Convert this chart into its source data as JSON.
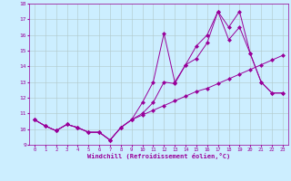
{
  "xlabel": "Windchill (Refroidissement éolien,°C)",
  "background_color": "#cceeff",
  "line_color": "#990099",
  "xlim": [
    -0.5,
    23.5
  ],
  "ylim": [
    9,
    18
  ],
  "xticks": [
    0,
    1,
    2,
    3,
    4,
    5,
    6,
    7,
    8,
    9,
    10,
    11,
    12,
    13,
    14,
    15,
    16,
    17,
    18,
    19,
    20,
    21,
    22,
    23
  ],
  "yticks": [
    9,
    10,
    11,
    12,
    13,
    14,
    15,
    16,
    17,
    18
  ],
  "line1_x": [
    0,
    1,
    2,
    3,
    4,
    5,
    6,
    7,
    8,
    9,
    10,
    11,
    12,
    13,
    14,
    15,
    16,
    17,
    18,
    19,
    20,
    21,
    22,
    23
  ],
  "line1_y": [
    10.6,
    10.2,
    9.9,
    10.3,
    10.1,
    9.8,
    9.8,
    9.3,
    10.1,
    10.6,
    11.7,
    13.0,
    16.1,
    13.0,
    14.1,
    15.3,
    16.0,
    17.5,
    16.5,
    17.5,
    14.8,
    13.0,
    12.3,
    12.3
  ],
  "line2_x": [
    0,
    1,
    2,
    3,
    4,
    5,
    6,
    7,
    8,
    9,
    10,
    11,
    12,
    13,
    14,
    15,
    16,
    17,
    18,
    19,
    20,
    21,
    22,
    23
  ],
  "line2_y": [
    10.6,
    10.2,
    9.9,
    10.3,
    10.1,
    9.8,
    9.8,
    9.3,
    10.1,
    10.6,
    11.0,
    11.7,
    13.0,
    12.9,
    14.1,
    14.5,
    15.5,
    17.5,
    15.7,
    16.5,
    14.8,
    13.0,
    12.3,
    12.3
  ],
  "line3_x": [
    0,
    1,
    2,
    3,
    4,
    5,
    6,
    7,
    8,
    9,
    10,
    11,
    12,
    13,
    14,
    15,
    16,
    17,
    18,
    19,
    20,
    21,
    22,
    23
  ],
  "line3_y": [
    10.6,
    10.2,
    9.9,
    10.3,
    10.1,
    9.8,
    9.8,
    9.3,
    10.1,
    10.6,
    10.9,
    11.2,
    11.5,
    11.8,
    12.1,
    12.4,
    12.6,
    12.9,
    13.2,
    13.5,
    13.8,
    14.1,
    14.4,
    14.7
  ],
  "grid_color": "#b0c8c8",
  "marker": "D",
  "markersize": 2.5
}
